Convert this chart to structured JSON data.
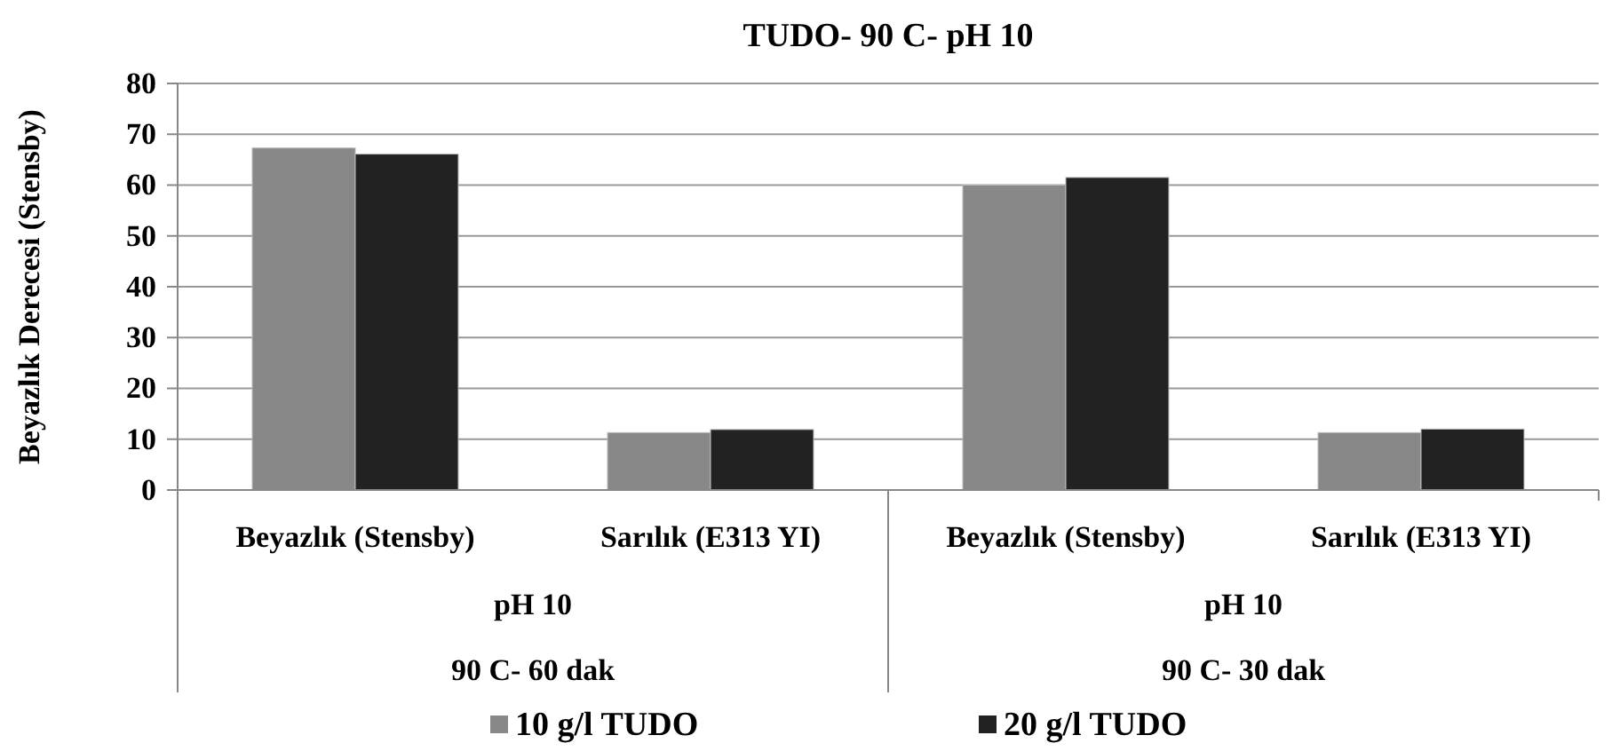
{
  "chart_data": {
    "type": "bar",
    "title": "TUDO- 90 C- pH 10",
    "ylabel": "Beyazlık Derecesi (Stensby)",
    "categories": [
      "Beyazlık (Stensby)",
      "Sarılık (E313 YI)",
      "Beyazlık (Stensby)",
      "Sarılık (E313 YI)"
    ],
    "series": [
      {
        "name": "10 g/l TUDO",
        "color": "#888888",
        "values": [
          67.3,
          11.3,
          60.0,
          11.3
        ]
      },
      {
        "name": "20 g/l TUDO",
        "color": "#222222",
        "values": [
          66.1,
          11.9,
          61.5,
          12.0
        ]
      }
    ],
    "annotations": [
      "pH 10",
      "90 C- 60 dak",
      "pH 10",
      "90 C- 30 dak"
    ],
    "ylim": [
      0,
      80
    ],
    "yticks": [
      0,
      10,
      20,
      30,
      40,
      50,
      60,
      70,
      80
    ],
    "grid": "y",
    "legend": "bottom"
  }
}
